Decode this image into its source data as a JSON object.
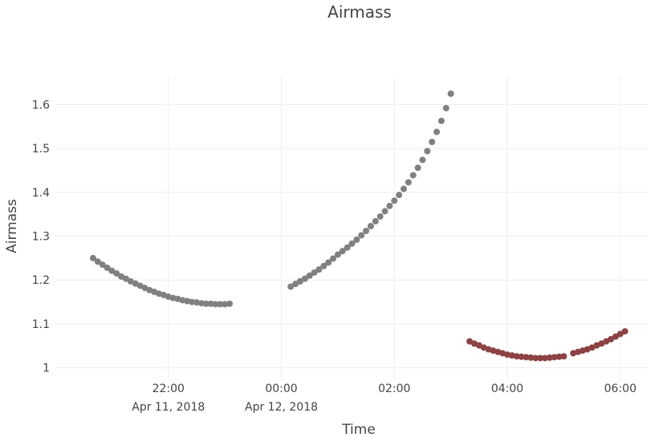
{
  "chart_data": {
    "type": "scatter",
    "title": "Airmass",
    "x_label": "Time",
    "y_label": "Airmass",
    "series": [
      {
        "color": "#808080",
        "x": [
          "2018-04-11 20:40",
          "2018-04-11 20:45",
          "2018-04-11 20:50",
          "2018-04-11 20:55",
          "2018-04-11 21:00",
          "2018-04-11 21:05",
          "2018-04-11 21:10",
          "2018-04-11 21:15",
          "2018-04-11 21:20",
          "2018-04-11 21:25",
          "2018-04-11 21:30",
          "2018-04-11 21:35",
          "2018-04-11 21:40",
          "2018-04-11 21:45",
          "2018-04-11 21:50",
          "2018-04-11 21:55",
          "2018-04-11 22:00",
          "2018-04-11 22:05",
          "2018-04-11 22:10",
          "2018-04-11 22:15",
          "2018-04-11 22:20",
          "2018-04-11 22:25",
          "2018-04-11 22:30",
          "2018-04-11 22:35",
          "2018-04-11 22:40",
          "2018-04-11 22:45",
          "2018-04-11 22:50",
          "2018-04-11 22:55",
          "2018-04-11 23:00",
          "2018-04-11 23:05",
          "2018-04-12 00:10",
          "2018-04-12 00:15",
          "2018-04-12 00:20",
          "2018-04-12 00:25",
          "2018-04-12 00:30",
          "2018-04-12 00:35",
          "2018-04-12 00:40",
          "2018-04-12 00:45",
          "2018-04-12 00:50",
          "2018-04-12 00:55",
          "2018-04-12 01:00",
          "2018-04-12 01:05",
          "2018-04-12 01:10",
          "2018-04-12 01:15",
          "2018-04-12 01:20",
          "2018-04-12 01:25",
          "2018-04-12 01:30",
          "2018-04-12 01:35",
          "2018-04-12 01:40",
          "2018-04-12 01:45",
          "2018-04-12 01:50",
          "2018-04-12 01:55",
          "2018-04-12 02:00",
          "2018-04-12 02:05",
          "2018-04-12 02:10",
          "2018-04-12 02:15",
          "2018-04-12 02:20",
          "2018-04-12 02:25",
          "2018-04-12 02:30",
          "2018-04-12 02:35",
          "2018-04-12 02:40",
          "2018-04-12 02:45",
          "2018-04-12 02:50",
          "2018-04-12 02:55",
          "2018-04-12 03:00"
        ],
        "values": [
          1.25,
          1.242,
          1.235,
          1.228,
          1.221,
          1.215,
          1.208,
          1.203,
          1.197,
          1.192,
          1.187,
          1.182,
          1.177,
          1.173,
          1.169,
          1.166,
          1.162,
          1.159,
          1.157,
          1.154,
          1.152,
          1.15,
          1.149,
          1.147,
          1.146,
          1.146,
          1.145,
          1.145,
          1.145,
          1.146,
          1.185,
          1.191,
          1.197,
          1.203,
          1.21,
          1.217,
          1.224,
          1.232,
          1.24,
          1.249,
          1.258,
          1.266,
          1.274,
          1.283,
          1.292,
          1.302,
          1.312,
          1.323,
          1.334,
          1.345,
          1.357,
          1.369,
          1.381,
          1.394,
          1.408,
          1.423,
          1.439,
          1.456,
          1.474,
          1.494,
          1.515,
          1.538,
          1.563,
          1.592,
          1.625
        ]
      },
      {
        "color": "#8c4242",
        "x": [
          "2018-04-12 03:20",
          "2018-04-12 03:25",
          "2018-04-12 03:30",
          "2018-04-12 03:35",
          "2018-04-12 03:40",
          "2018-04-12 03:45",
          "2018-04-12 03:50",
          "2018-04-12 03:55",
          "2018-04-12 04:00",
          "2018-04-12 04:05",
          "2018-04-12 04:10",
          "2018-04-12 04:15",
          "2018-04-12 04:20",
          "2018-04-12 04:25",
          "2018-04-12 04:30",
          "2018-04-12 04:35",
          "2018-04-12 04:40",
          "2018-04-12 04:45",
          "2018-04-12 04:50",
          "2018-04-12 04:55",
          "2018-04-12 05:00",
          "2018-04-12 05:10",
          "2018-04-12 05:15",
          "2018-04-12 05:20",
          "2018-04-12 05:25",
          "2018-04-12 05:30",
          "2018-04-12 05:35",
          "2018-04-12 05:40",
          "2018-04-12 05:45",
          "2018-04-12 05:50",
          "2018-04-12 05:55",
          "2018-04-12 06:00",
          "2018-04-12 06:05"
        ],
        "values": [
          1.06,
          1.055,
          1.051,
          1.046,
          1.042,
          1.039,
          1.036,
          1.033,
          1.03,
          1.028,
          1.026,
          1.025,
          1.024,
          1.023,
          1.022,
          1.022,
          1.022,
          1.023,
          1.024,
          1.025,
          1.026,
          1.033,
          1.036,
          1.039,
          1.042,
          1.046,
          1.051,
          1.055,
          1.06,
          1.065,
          1.071,
          1.077,
          1.083
        ]
      }
    ],
    "xlim": [
      "2018-04-11 20:00",
      "2018-04-12 06:30"
    ],
    "xticks": [
      {
        "value": "2018-04-11 22:00",
        "label": "22:00",
        "date": "Apr 11, 2018"
      },
      {
        "value": "2018-04-12 00:00",
        "label": "00:00",
        "date": "Apr 12, 2018"
      },
      {
        "value": "2018-04-12 02:00",
        "label": "02:00"
      },
      {
        "value": "2018-04-12 04:00",
        "label": "04:00"
      },
      {
        "value": "2018-04-12 06:00",
        "label": "06:00"
      }
    ],
    "ylim": [
      0.97,
      1.665
    ],
    "yticks": [
      1,
      1.1,
      1.2,
      1.3,
      1.4,
      1.5,
      1.6
    ],
    "grid": true
  }
}
